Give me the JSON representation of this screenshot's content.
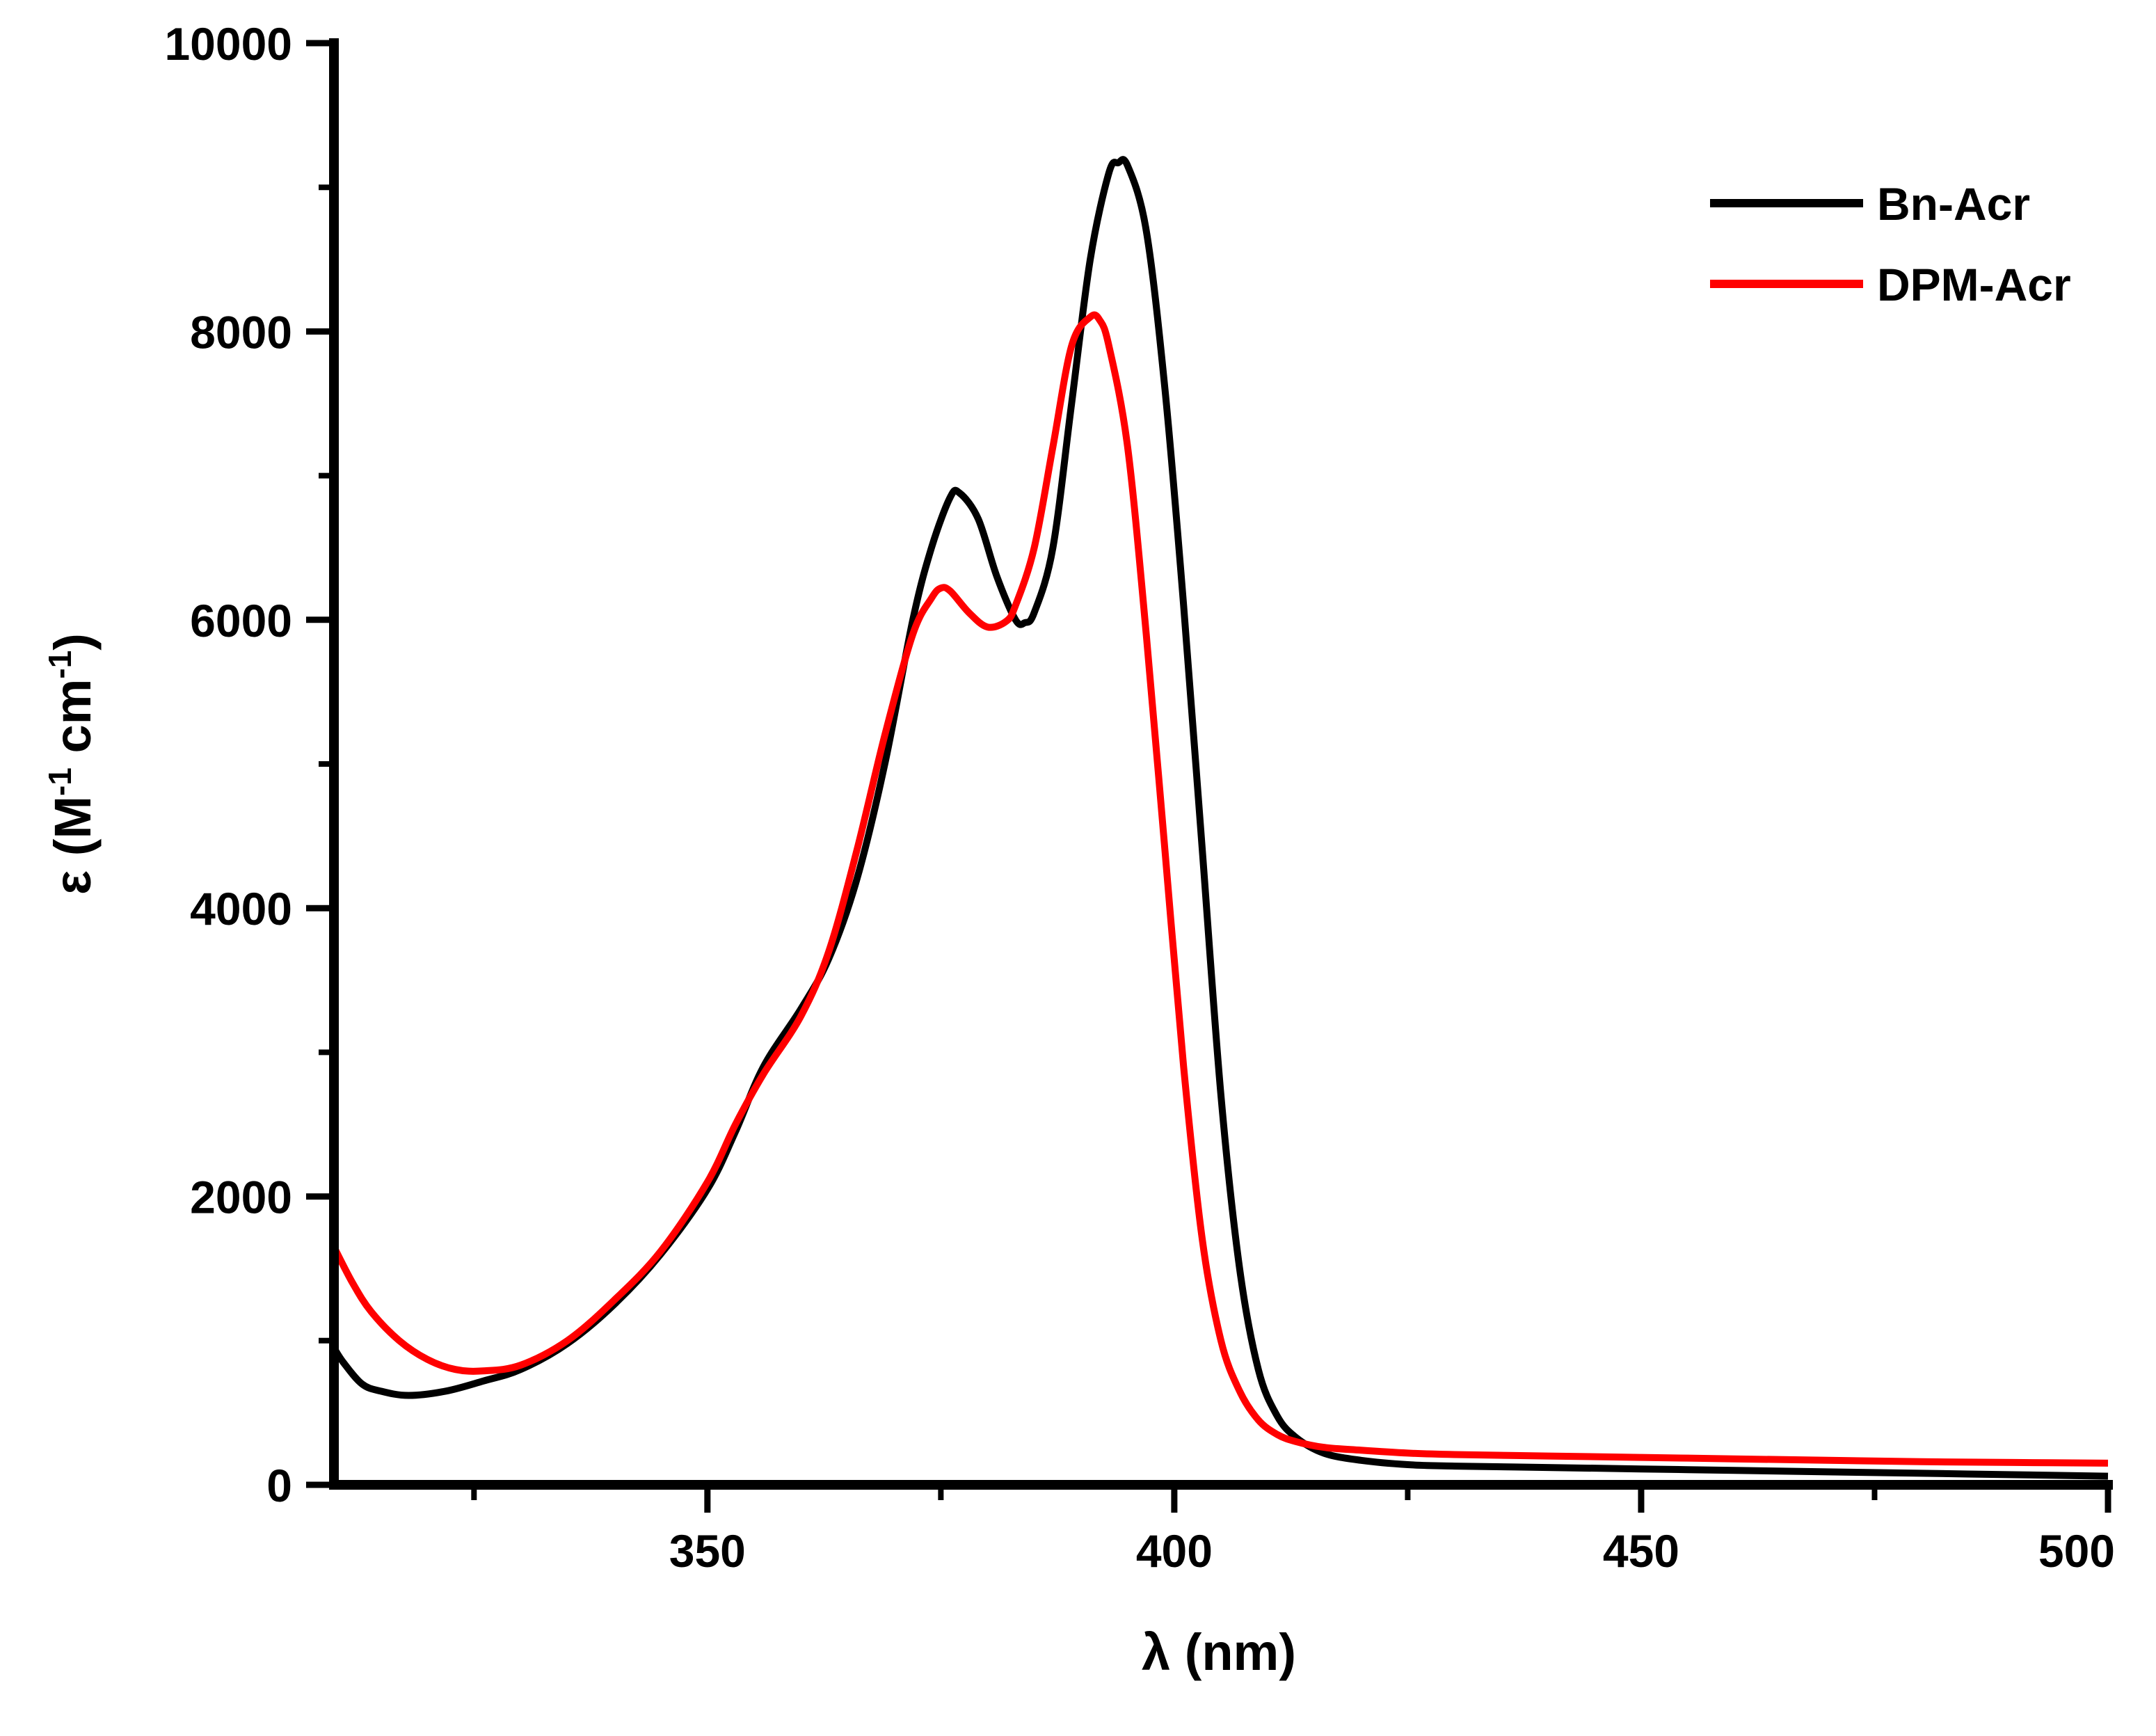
{
  "chart_data": {
    "type": "line",
    "title": "",
    "xlabel": "λ (nm)",
    "ylabel": {
      "prefix": "ε (M",
      "sup1": "-1",
      "middle": " cm",
      "sup2": "-1",
      "suffix": ")"
    },
    "xlim": [
      310,
      500
    ],
    "ylim": [
      0,
      10000
    ],
    "x_ticks": [
      350,
      400,
      450,
      500
    ],
    "x_tick_labels": [
      "350",
      "400",
      "450",
      "500"
    ],
    "y_ticks": [
      0,
      2000,
      4000,
      6000,
      8000,
      10000
    ],
    "y_tick_labels": [
      "0",
      "2000",
      "4000",
      "6000",
      "8000",
      "10000"
    ],
    "grid": false,
    "legend_position": "top-right",
    "series": [
      {
        "name": "Bn-Acr",
        "color": "#000000",
        "x": [
          310,
          311,
          313,
          315,
          318,
          322,
          326,
          330,
          335,
          340,
          345,
          350,
          353,
          356,
          360,
          363,
          366,
          369,
          372,
          374,
          376,
          377,
          379,
          381,
          383,
          384,
          385,
          387,
          389,
          391,
          393,
          394,
          395,
          397,
          399,
          401,
          403,
          405,
          407,
          409,
          411,
          413,
          416,
          420,
          425,
          430,
          440,
          450,
          460,
          470,
          480,
          490,
          500
        ],
        "y": [
          950,
          850,
          700,
          650,
          620,
          650,
          720,
          800,
          980,
          1250,
          1600,
          2050,
          2450,
          2900,
          3300,
          3650,
          4200,
          5000,
          6000,
          6500,
          6850,
          6880,
          6700,
          6300,
          6000,
          5980,
          6050,
          6500,
          7500,
          8500,
          9100,
          9170,
          9150,
          8700,
          7600,
          6100,
          4400,
          2700,
          1500,
          800,
          480,
          330,
          220,
          170,
          140,
          130,
          120,
          110,
          100,
          90,
          80,
          70,
          60
        ]
      },
      {
        "name": "DPM-Acr",
        "color": "#ff0000",
        "x": [
          310,
          312,
          314,
          317,
          320,
          323,
          326,
          330,
          335,
          340,
          345,
          350,
          353,
          356,
          360,
          363,
          366,
          369,
          372,
          374,
          375,
          376,
          378,
          380,
          382,
          383,
          385,
          387,
          389,
          391,
          392,
          393,
          395,
          397,
          399,
          401,
          403,
          405,
          407,
          409,
          411,
          413,
          416,
          420,
          425,
          430,
          440,
          450,
          460,
          470,
          480,
          490,
          500
        ],
        "y": [
          1650,
          1400,
          1200,
          1000,
          870,
          800,
          790,
          830,
          1000,
          1280,
          1620,
          2100,
          2500,
          2850,
          3250,
          3700,
          4400,
          5200,
          5900,
          6150,
          6220,
          6200,
          6050,
          5950,
          5990,
          6100,
          6500,
          7200,
          7900,
          8100,
          8080,
          7900,
          7200,
          5900,
          4400,
          2900,
          1700,
          1000,
          650,
          450,
          350,
          300,
          260,
          240,
          220,
          210,
          200,
          190,
          180,
          170,
          160,
          155,
          150
        ]
      }
    ]
  }
}
